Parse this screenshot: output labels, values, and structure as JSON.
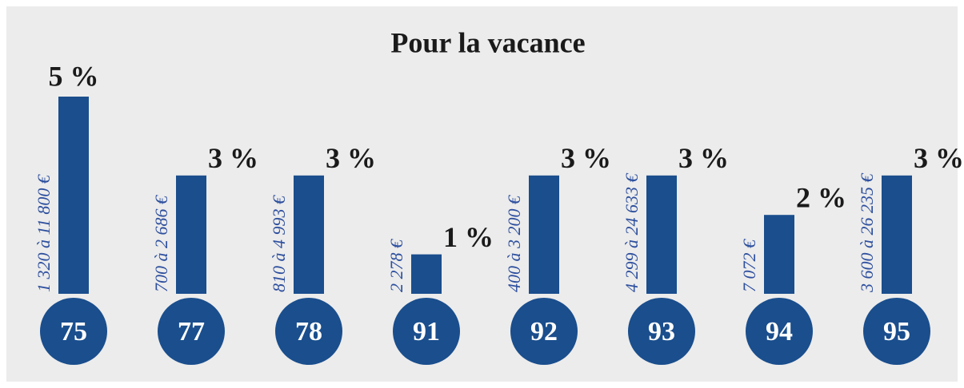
{
  "chart_data": {
    "type": "bar",
    "title": "Pour la vacance",
    "categories": [
      "75",
      "77",
      "78",
      "91",
      "92",
      "93",
      "94",
      "95"
    ],
    "values": [
      5,
      3,
      3,
      1,
      3,
      3,
      2,
      3
    ],
    "value_labels": [
      "5 %",
      "3 %",
      "3 %",
      "1 %",
      "3 %",
      "3 %",
      "2 %",
      "3 %"
    ],
    "annotations": [
      "1 320 à 11 800 €",
      "700 à 2 686 €",
      "810 à 4 993 €",
      "2 278 €",
      "400 à 3 200 €",
      "4 299 à 24 633 €",
      "7 072 €",
      "3 600 à 26 235 €"
    ],
    "color": "#1a4e8d"
  }
}
